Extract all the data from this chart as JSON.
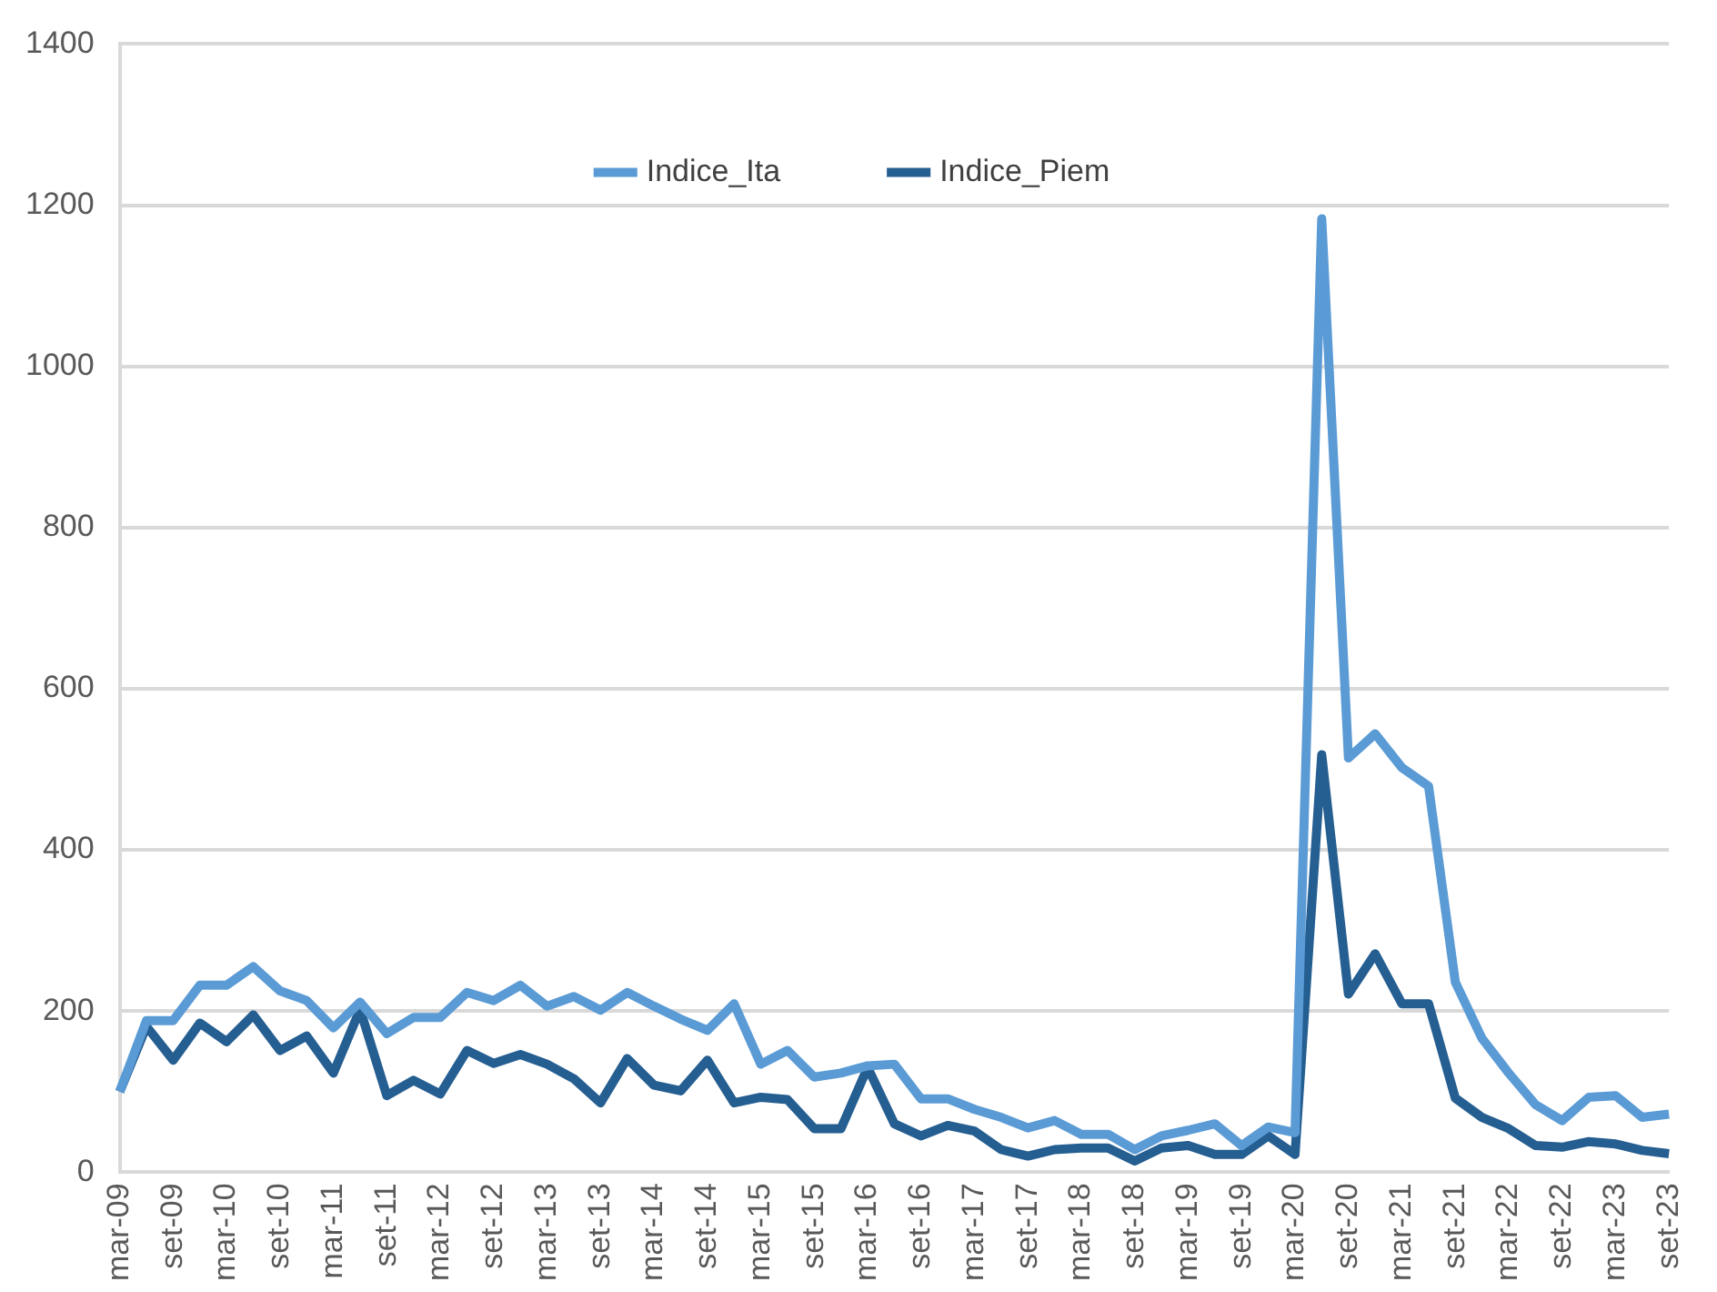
{
  "chart_data": {
    "type": "line",
    "categories": [
      "mar-09",
      null,
      "set-09",
      null,
      "mar-10",
      null,
      "set-10",
      null,
      "mar-11",
      null,
      "set-11",
      null,
      "mar-12",
      null,
      "set-12",
      null,
      "mar-13",
      null,
      "set-13",
      null,
      "mar-14",
      null,
      "set-14",
      null,
      "mar-15",
      null,
      "set-15",
      null,
      "mar-16",
      null,
      "set-16",
      null,
      "mar-17",
      null,
      "set-17",
      null,
      "mar-18",
      null,
      "set-18",
      null,
      "mar-19",
      null,
      "set-19",
      null,
      "mar-20",
      null,
      "set-20",
      null,
      "mar-21",
      null,
      "set-21",
      null,
      "mar-22",
      null,
      "set-22",
      null,
      "mar-23",
      null,
      "set-23"
    ],
    "series": [
      {
        "name": "Indice_Ita",
        "color": "#5b9bd5",
        "values": [
          100,
          188,
          188,
          232,
          232,
          255,
          225,
          213,
          179,
          211,
          172,
          192,
          192,
          223,
          213,
          232,
          206,
          218,
          201,
          223,
          206,
          190,
          176,
          209,
          134,
          151,
          118,
          123,
          132,
          134,
          91,
          91,
          78,
          68,
          55,
          64,
          47,
          47,
          28,
          45,
          52,
          60,
          33,
          56,
          49,
          1183,
          514,
          544,
          502,
          479,
          236,
          166,
          123,
          84,
          64,
          93,
          95,
          68,
          72
        ]
      },
      {
        "name": "Indice_Piem",
        "color": "#255e91",
        "values": [
          100,
          181,
          139,
          185,
          162,
          195,
          151,
          169,
          123,
          202,
          95,
          114,
          97,
          151,
          135,
          146,
          134,
          116,
          86,
          141,
          108,
          101,
          139,
          86,
          93,
          90,
          54,
          54,
          130,
          60,
          45,
          58,
          51,
          28,
          20,
          28,
          30,
          30,
          14,
          30,
          33,
          22,
          22,
          45,
          22,
          518,
          221,
          271,
          209,
          209,
          92,
          68,
          54,
          33,
          31,
          38,
          35,
          27,
          23
        ]
      }
    ],
    "ylim": [
      0,
      1400
    ],
    "yticks": [
      0,
      200,
      400,
      600,
      800,
      1000,
      1200,
      1400
    ],
    "grid": "y",
    "legend": "top",
    "marker": "none",
    "line_style": "solid"
  }
}
